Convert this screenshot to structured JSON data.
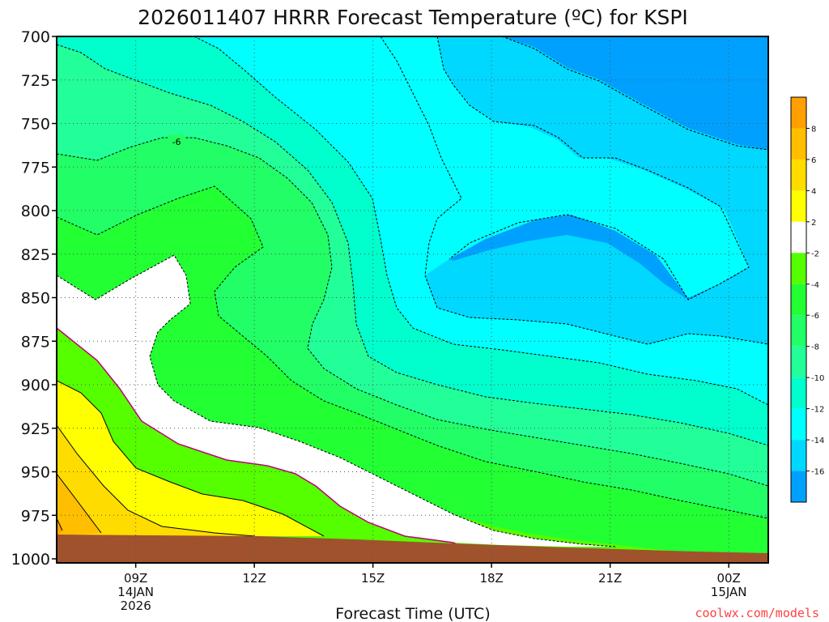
{
  "chart_data": {
    "type": "contour",
    "title": "2026011407 HRRR Forecast Temperature (ºC) for KSPI",
    "xlabel": "Forecast Time (UTC)",
    "ylabel": "",
    "y_axis": {
      "ticks": [
        700,
        725,
        750,
        775,
        800,
        825,
        850,
        875,
        900,
        925,
        950,
        975,
        1000
      ],
      "range": [
        700,
        1000
      ],
      "reversed": true
    },
    "x_axis": {
      "range_hours": [
        7,
        25
      ],
      "ticks": [
        {
          "hour": 9,
          "label": "09Z",
          "sub1": "14JAN",
          "sub2": "2026"
        },
        {
          "hour": 12,
          "label": "12Z",
          "sub1": "",
          "sub2": ""
        },
        {
          "hour": 15,
          "label": "15Z",
          "sub1": "",
          "sub2": ""
        },
        {
          "hour": 18,
          "label": "18Z",
          "sub1": "",
          "sub2": ""
        },
        {
          "hour": 21,
          "label": "21Z",
          "sub1": "",
          "sub2": ""
        },
        {
          "hour": 24,
          "label": "00Z",
          "sub1": "15JAN",
          "sub2": ""
        }
      ]
    },
    "grid": true,
    "contour_label": "-6",
    "colorbar": {
      "placement": "right",
      "bands": [
        {
          "range": [
            8,
            10
          ],
          "color": "#ffa000"
        },
        {
          "range": [
            6,
            8
          ],
          "color": "#ffbe00"
        },
        {
          "range": [
            4,
            6
          ],
          "color": "#ffdc00"
        },
        {
          "range": [
            2,
            4
          ],
          "color": "#ffff00"
        },
        {
          "range": [
            -2,
            2
          ],
          "color": "#ffffff"
        },
        {
          "range": [
            -4,
            -2
          ],
          "color": "#55ff00"
        },
        {
          "range": [
            -6,
            -4
          ],
          "color": "#22ff33"
        },
        {
          "range": [
            -8,
            -6
          ],
          "color": "#22ff66"
        },
        {
          "range": [
            -10,
            -8
          ],
          "color": "#22ff99"
        },
        {
          "range": [
            -12,
            -10
          ],
          "color": "#00ffcc"
        },
        {
          "range": [
            -14,
            -12
          ],
          "color": "#00ffff"
        },
        {
          "range": [
            -16,
            -14
          ],
          "color": "#00d8ff"
        },
        {
          "range": [
            -18,
            -16
          ],
          "color": "#00a0ff"
        }
      ],
      "labels": [
        "8",
        "6",
        "4",
        "2",
        "-2",
        "-4",
        "-6",
        "-8",
        "-10",
        "-12",
        "-14",
        "-16"
      ]
    },
    "terrain_color": "#a0522d",
    "credit": "coolwx.com/models"
  }
}
